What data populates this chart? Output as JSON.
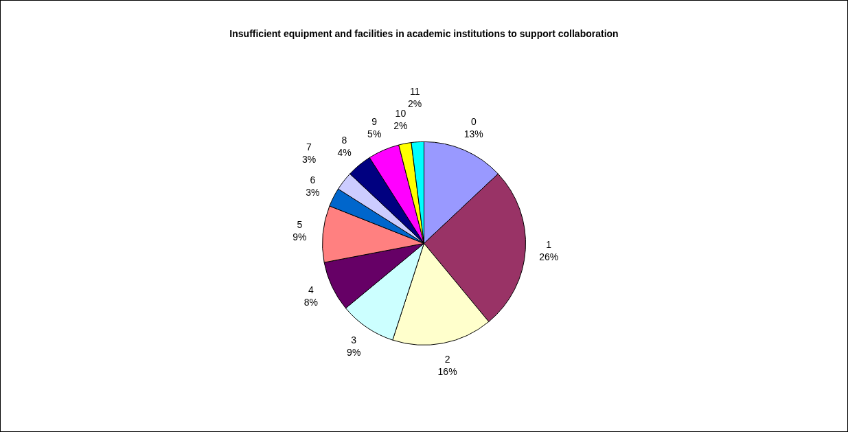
{
  "chart_data": {
    "type": "pie",
    "title": "Insufficient equipment and facilities in academic institutions to support collaboration",
    "categories": [
      "0",
      "1",
      "2",
      "3",
      "4",
      "5",
      "6",
      "7",
      "8",
      "9",
      "10",
      "11"
    ],
    "values": [
      13,
      26,
      16,
      9,
      8,
      9,
      3,
      3,
      4,
      5,
      2,
      2
    ],
    "value_labels": [
      "13%",
      "26%",
      "16%",
      "9%",
      "8%",
      "9%",
      "3%",
      "3%",
      "4%",
      "5%",
      "2%",
      "2%"
    ],
    "colors": [
      "#9999ff",
      "#993366",
      "#ffffcc",
      "#ccffff",
      "#660066",
      "#ff8080",
      "#0066cc",
      "#ccccff",
      "#000080",
      "#ff00ff",
      "#ffff00",
      "#00ffff"
    ],
    "legend": false
  }
}
